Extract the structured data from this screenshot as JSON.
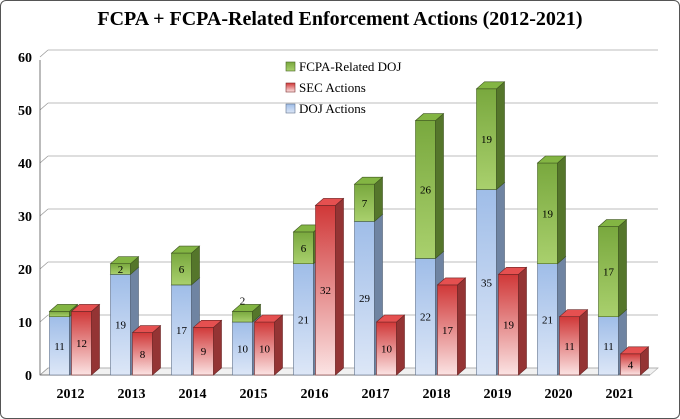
{
  "chart_data": {
    "type": "bar",
    "title": "FCPA + FCPA-Related Enforcement Actions (2012-2021)",
    "xlabel": "",
    "ylabel": "",
    "ylim": [
      0,
      60
    ],
    "yticks": [
      0,
      10,
      20,
      30,
      40,
      50,
      60
    ],
    "grid": true,
    "legend": "top-center",
    "categories": [
      "2012",
      "2013",
      "2014",
      "2015",
      "2016",
      "2017",
      "2018",
      "2019",
      "2020",
      "2021"
    ],
    "series": [
      {
        "name": "DOJ Actions",
        "stack": "doj",
        "color": "#b7cdee",
        "values": [
          11,
          19,
          17,
          10,
          21,
          29,
          22,
          35,
          21,
          11
        ]
      },
      {
        "name": "FCPA-Related DOJ",
        "stack": "doj",
        "color": "#8dbb4e",
        "values": [
          1,
          2,
          6,
          2,
          6,
          7,
          26,
          19,
          19,
          17
        ]
      },
      {
        "name": "SEC Actions",
        "stack": "sec",
        "color": "#d44a4a",
        "values": [
          12,
          8,
          9,
          10,
          32,
          10,
          17,
          19,
          11,
          4
        ]
      }
    ],
    "data_labels": {
      "DOJ Actions": [
        "11",
        "19",
        "17",
        "10",
        "21",
        "29",
        "22",
        "35",
        "21",
        "11"
      ],
      "FCPA-Related DOJ": [
        "",
        "2",
        "6",
        "2",
        "6",
        "7",
        "26",
        "19",
        "19",
        "17"
      ],
      "SEC Actions": [
        "12",
        "8",
        "9",
        "10",
        "32",
        "10",
        "17",
        "19",
        "11",
        "4"
      ]
    },
    "legend_order": [
      "FCPA-Related DOJ",
      "SEC Actions",
      "DOJ Actions"
    ]
  }
}
